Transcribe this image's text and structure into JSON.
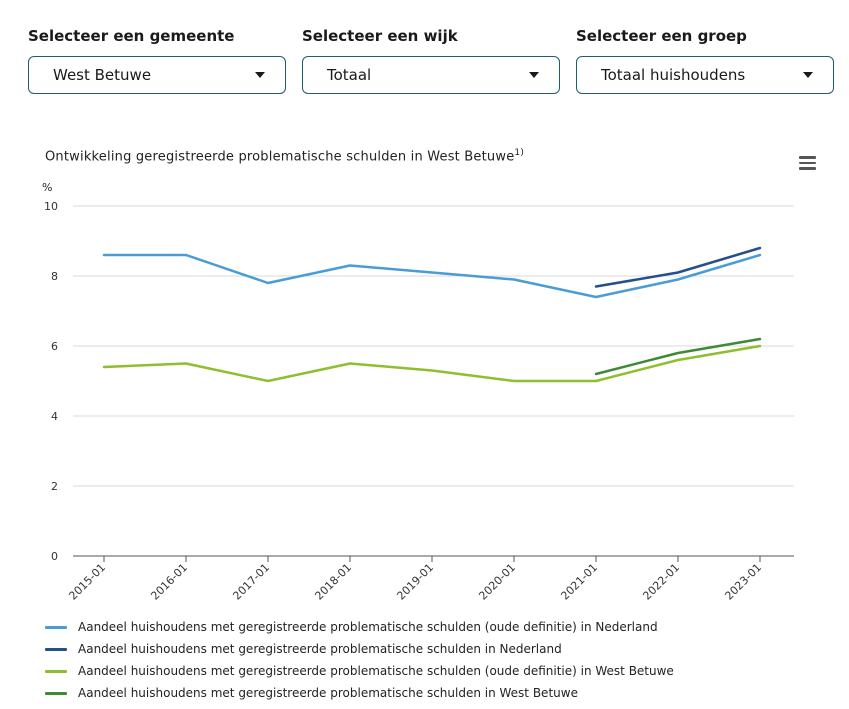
{
  "filters": [
    {
      "label": "Selecteer een gemeente",
      "value": "West Betuwe"
    },
    {
      "label": "Selecteer een wijk",
      "value": "Totaal"
    },
    {
      "label": "Selecteer een groep",
      "value": "Totaal huishoudens"
    }
  ],
  "menu_icon": "hamburger-menu-icon",
  "chart_data": {
    "type": "line",
    "title": "Ontwikkeling geregistreerde problematische schulden in West Betuwe",
    "title_footnote": "1)",
    "ylabel": "%",
    "xlabel": "",
    "ylim": [
      0,
      10
    ],
    "yticks": [
      0,
      2,
      4,
      6,
      8,
      10
    ],
    "categories": [
      "2015-01",
      "2016-01",
      "2017-01",
      "2018-01",
      "2019-01",
      "2020-01",
      "2021-01",
      "2022-01",
      "2023-01"
    ],
    "grid": true,
    "legend_position": "bottom",
    "series": [
      {
        "name": "Aandeel huishoudens met geregistreerde problematische schulden (oude definitie) in Nederland",
        "color": "#4a9cd6",
        "values": [
          8.6,
          8.6,
          7.8,
          8.3,
          8.1,
          7.9,
          7.4,
          7.9,
          8.6
        ]
      },
      {
        "name": "Aandeel huishoudens met geregistreerde problematische schulden in Nederland",
        "color": "#234f8c",
        "values": [
          null,
          null,
          null,
          null,
          null,
          null,
          7.7,
          8.1,
          8.8
        ]
      },
      {
        "name": "Aandeel huishoudens met geregistreerde problematische schulden (oude definitie) in West Betuwe",
        "color": "#8dbf2e",
        "values": [
          5.4,
          5.5,
          5.0,
          5.5,
          5.3,
          5.0,
          5.0,
          5.6,
          6.0
        ]
      },
      {
        "name": "Aandeel huishoudens met geregistreerde problematische schulden in West Betuwe",
        "color": "#3d8a35",
        "values": [
          null,
          null,
          null,
          null,
          null,
          null,
          5.2,
          5.8,
          6.2
        ]
      }
    ]
  }
}
